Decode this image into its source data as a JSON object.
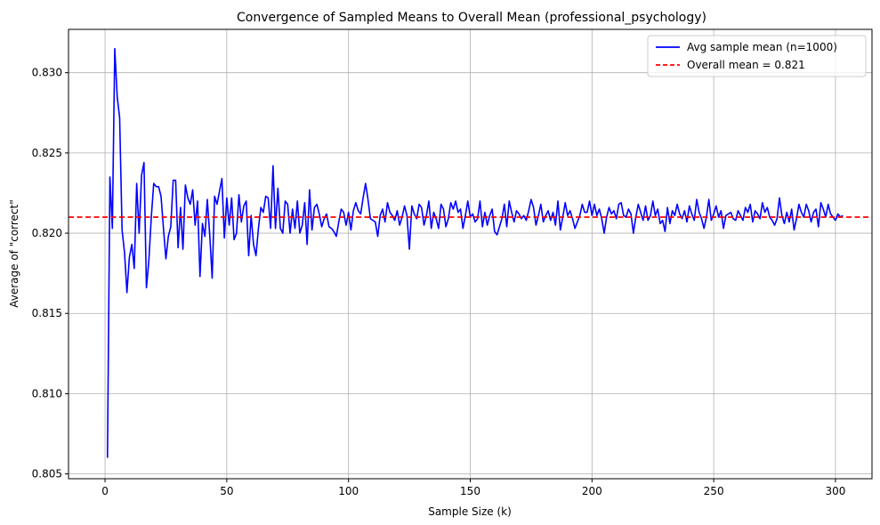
{
  "chart_data": {
    "type": "line",
    "title": "Convergence of Sampled Means to Overall Mean (professional_psychology)",
    "xlabel": "Sample Size (k)",
    "ylabel": "Average of \"correct\"",
    "xlim": [
      -15,
      315
    ],
    "ylim": [
      0.8047,
      0.8327
    ],
    "xticks": [
      0,
      50,
      100,
      150,
      200,
      250,
      300
    ],
    "yticks": [
      0.805,
      0.81,
      0.815,
      0.82,
      0.825,
      0.83
    ],
    "xtick_labels": [
      "0",
      "50",
      "100",
      "150",
      "200",
      "250",
      "300"
    ],
    "ytick_labels": [
      "0.805",
      "0.810",
      "0.815",
      "0.820",
      "0.825",
      "0.830"
    ],
    "grid": true,
    "legend_position": "top-right",
    "series": [
      {
        "name": "Avg sample mean (n=1000)",
        "color": "#0000ff",
        "style": "solid",
        "x_start": 1,
        "x_step": 1,
        "values": [
          0.806,
          0.8235,
          0.8203,
          0.8315,
          0.8285,
          0.8272,
          0.8202,
          0.8188,
          0.8163,
          0.8185,
          0.8193,
          0.8178,
          0.8231,
          0.82,
          0.8236,
          0.8244,
          0.8166,
          0.8183,
          0.821,
          0.8231,
          0.8229,
          0.8229,
          0.8223,
          0.8203,
          0.8184,
          0.8198,
          0.8204,
          0.8233,
          0.8233,
          0.8191,
          0.8216,
          0.819,
          0.823,
          0.8222,
          0.8218,
          0.8227,
          0.8205,
          0.822,
          0.8173,
          0.8206,
          0.8198,
          0.8221,
          0.8199,
          0.8172,
          0.8223,
          0.8218,
          0.8226,
          0.8234,
          0.8197,
          0.8222,
          0.8205,
          0.8222,
          0.8196,
          0.82,
          0.8224,
          0.8207,
          0.8217,
          0.822,
          0.8186,
          0.8211,
          0.8193,
          0.8186,
          0.8203,
          0.8216,
          0.8213,
          0.8223,
          0.8222,
          0.8203,
          0.8242,
          0.8203,
          0.8228,
          0.8203,
          0.82,
          0.822,
          0.8218,
          0.82,
          0.8215,
          0.8203,
          0.822,
          0.82,
          0.8205,
          0.8219,
          0.8193,
          0.8227,
          0.8202,
          0.8216,
          0.8218,
          0.8212,
          0.8204,
          0.8209,
          0.8212,
          0.8204,
          0.8203,
          0.8201,
          0.8198,
          0.8207,
          0.8215,
          0.8213,
          0.8205,
          0.8213,
          0.8202,
          0.8214,
          0.8219,
          0.8214,
          0.8212,
          0.8222,
          0.8231,
          0.8221,
          0.8209,
          0.8208,
          0.8207,
          0.8198,
          0.8211,
          0.8215,
          0.8207,
          0.8219,
          0.8213,
          0.8211,
          0.8208,
          0.8214,
          0.8205,
          0.821,
          0.8217,
          0.8211,
          0.819,
          0.8217,
          0.8212,
          0.8209,
          0.8218,
          0.8216,
          0.8205,
          0.8211,
          0.822,
          0.8203,
          0.8213,
          0.8209,
          0.8203,
          0.8218,
          0.8215,
          0.8204,
          0.8209,
          0.8219,
          0.8215,
          0.822,
          0.8213,
          0.8215,
          0.8203,
          0.8211,
          0.822,
          0.821,
          0.8212,
          0.8207,
          0.8209,
          0.822,
          0.8204,
          0.8213,
          0.8205,
          0.8211,
          0.8215,
          0.8201,
          0.8199,
          0.8204,
          0.8209,
          0.8218,
          0.8204,
          0.822,
          0.8213,
          0.8207,
          0.8214,
          0.8212,
          0.8209,
          0.8211,
          0.8208,
          0.8214,
          0.8221,
          0.8216,
          0.8205,
          0.8211,
          0.8218,
          0.8207,
          0.8211,
          0.8214,
          0.8208,
          0.8213,
          0.8205,
          0.822,
          0.8202,
          0.821,
          0.8219,
          0.8211,
          0.8214,
          0.8209,
          0.8203,
          0.8207,
          0.8211,
          0.8218,
          0.8213,
          0.8213,
          0.822,
          0.8211,
          0.8218,
          0.8211,
          0.8215,
          0.8209,
          0.82,
          0.821,
          0.8216,
          0.8212,
          0.8214,
          0.8209,
          0.8218,
          0.8219,
          0.8211,
          0.821,
          0.8215,
          0.8212,
          0.82,
          0.821,
          0.8218,
          0.8213,
          0.8208,
          0.8217,
          0.8208,
          0.8211,
          0.822,
          0.8211,
          0.8215,
          0.8206,
          0.8208,
          0.8201,
          0.8216,
          0.8206,
          0.8214,
          0.8211,
          0.8218,
          0.8212,
          0.8209,
          0.8214,
          0.8207,
          0.8217,
          0.8212,
          0.8208,
          0.8221,
          0.8213,
          0.8209,
          0.8203,
          0.821,
          0.8221,
          0.8208,
          0.8212,
          0.8217,
          0.821,
          0.8214,
          0.8203,
          0.8211,
          0.8212,
          0.8213,
          0.8209,
          0.8208,
          0.8214,
          0.8211,
          0.8208,
          0.8216,
          0.8213,
          0.8218,
          0.8207,
          0.8214,
          0.8212,
          0.8209,
          0.8219,
          0.8213,
          0.8216,
          0.821,
          0.8208,
          0.8205,
          0.8209,
          0.8222,
          0.8211,
          0.8206,
          0.8213,
          0.8207,
          0.8215,
          0.8202,
          0.8209,
          0.8218,
          0.8213,
          0.821,
          0.8218,
          0.8214,
          0.8207,
          0.8213,
          0.8215,
          0.8204,
          0.8219,
          0.8215,
          0.821,
          0.8218,
          0.8212,
          0.821,
          0.8208,
          0.8212,
          0.821,
          0.8211
        ]
      },
      {
        "name": "Overall mean = 0.821",
        "color": "#ff0000",
        "style": "dashed",
        "value": 0.821
      }
    ]
  }
}
